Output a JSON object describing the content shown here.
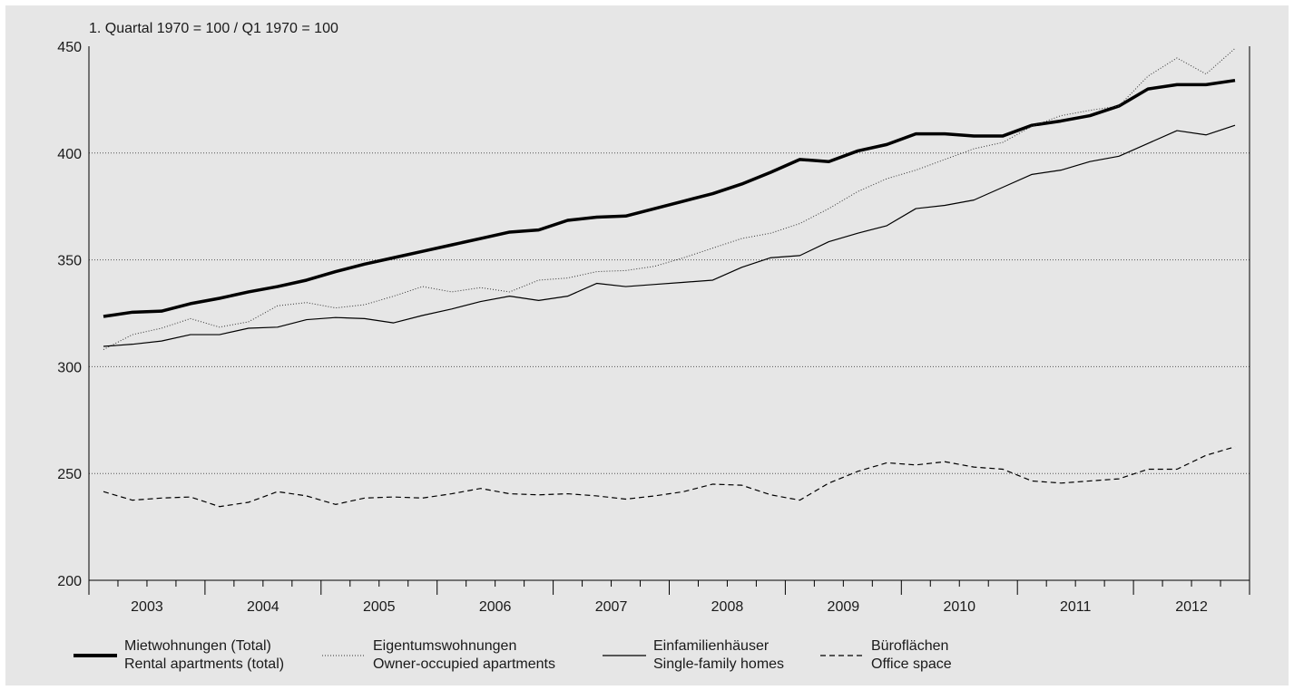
{
  "chart_data": {
    "type": "line",
    "unit_label": "1. Quartal 1970 = 100 / Q1 1970 = 100",
    "ylim": [
      200,
      450
    ],
    "yticks": [
      200,
      250,
      300,
      350,
      400,
      450
    ],
    "grid": "horizontal dotted",
    "x_labels": [
      "2003",
      "2004",
      "2005",
      "2006",
      "2007",
      "2008",
      "2009",
      "2010",
      "2011",
      "2012"
    ],
    "x_start_year": 2003,
    "quarters": 40,
    "legend_position": "bottom",
    "series": [
      {
        "name_de": "Mietwohnungen (Total)",
        "name_en": "Rental apartments (total)",
        "style": "thick-solid",
        "color": "#000000",
        "values": [
          323.5,
          325.5,
          326,
          329.5,
          332,
          335,
          337.5,
          340.5,
          344.5,
          348,
          351,
          354,
          357,
          360,
          363,
          364,
          368.5,
          370,
          370.5,
          374,
          377.5,
          381,
          385.5,
          391,
          397,
          396,
          401,
          404,
          409,
          409,
          408,
          408,
          413,
          415,
          417.5,
          422,
          430,
          432,
          432,
          434
        ]
      },
      {
        "name_de": "Eigentumswohnungen",
        "name_en": "Owner-occupied apartments",
        "style": "dotted",
        "color": "#333333",
        "values": [
          308,
          315,
          318,
          322.5,
          318.5,
          321,
          328.5,
          330,
          327.5,
          329,
          333,
          337.5,
          335,
          337,
          335,
          340.5,
          341.5,
          344.5,
          345,
          347,
          351,
          355.5,
          360,
          362.5,
          367,
          374,
          382,
          388,
          392,
          397,
          402,
          405,
          412.5,
          417.5,
          420,
          422,
          436,
          444.5,
          437,
          449
        ]
      },
      {
        "name_de": "Einfamilienhäuser",
        "name_en": "Single-family homes",
        "style": "thin-solid",
        "color": "#000000",
        "values": [
          309.5,
          310.5,
          312,
          315,
          315,
          318,
          318.5,
          322,
          323,
          322.5,
          320.5,
          324,
          327,
          330.5,
          333,
          331,
          333,
          339,
          337.5,
          338.5,
          339.5,
          340.5,
          346.5,
          351,
          352,
          358.5,
          362.5,
          366,
          374,
          375.5,
          378,
          384,
          390,
          392,
          396,
          398.5,
          404.5,
          410.5,
          408.5,
          413
        ]
      },
      {
        "name_de": "Büroflächen",
        "name_en": "Office space",
        "style": "dashed",
        "color": "#000000",
        "values": [
          241.5,
          237.5,
          238.5,
          239,
          234.5,
          236.5,
          241.5,
          239.5,
          235.5,
          238.5,
          239,
          238.5,
          240.5,
          243,
          240.5,
          240,
          240.5,
          239.5,
          238,
          239.5,
          241.5,
          245,
          244.5,
          240,
          237.5,
          245.5,
          251,
          255,
          254,
          255.5,
          253,
          252,
          246.5,
          245.5,
          246.5,
          247.5,
          252,
          252,
          258.5,
          262.5
        ]
      }
    ]
  }
}
